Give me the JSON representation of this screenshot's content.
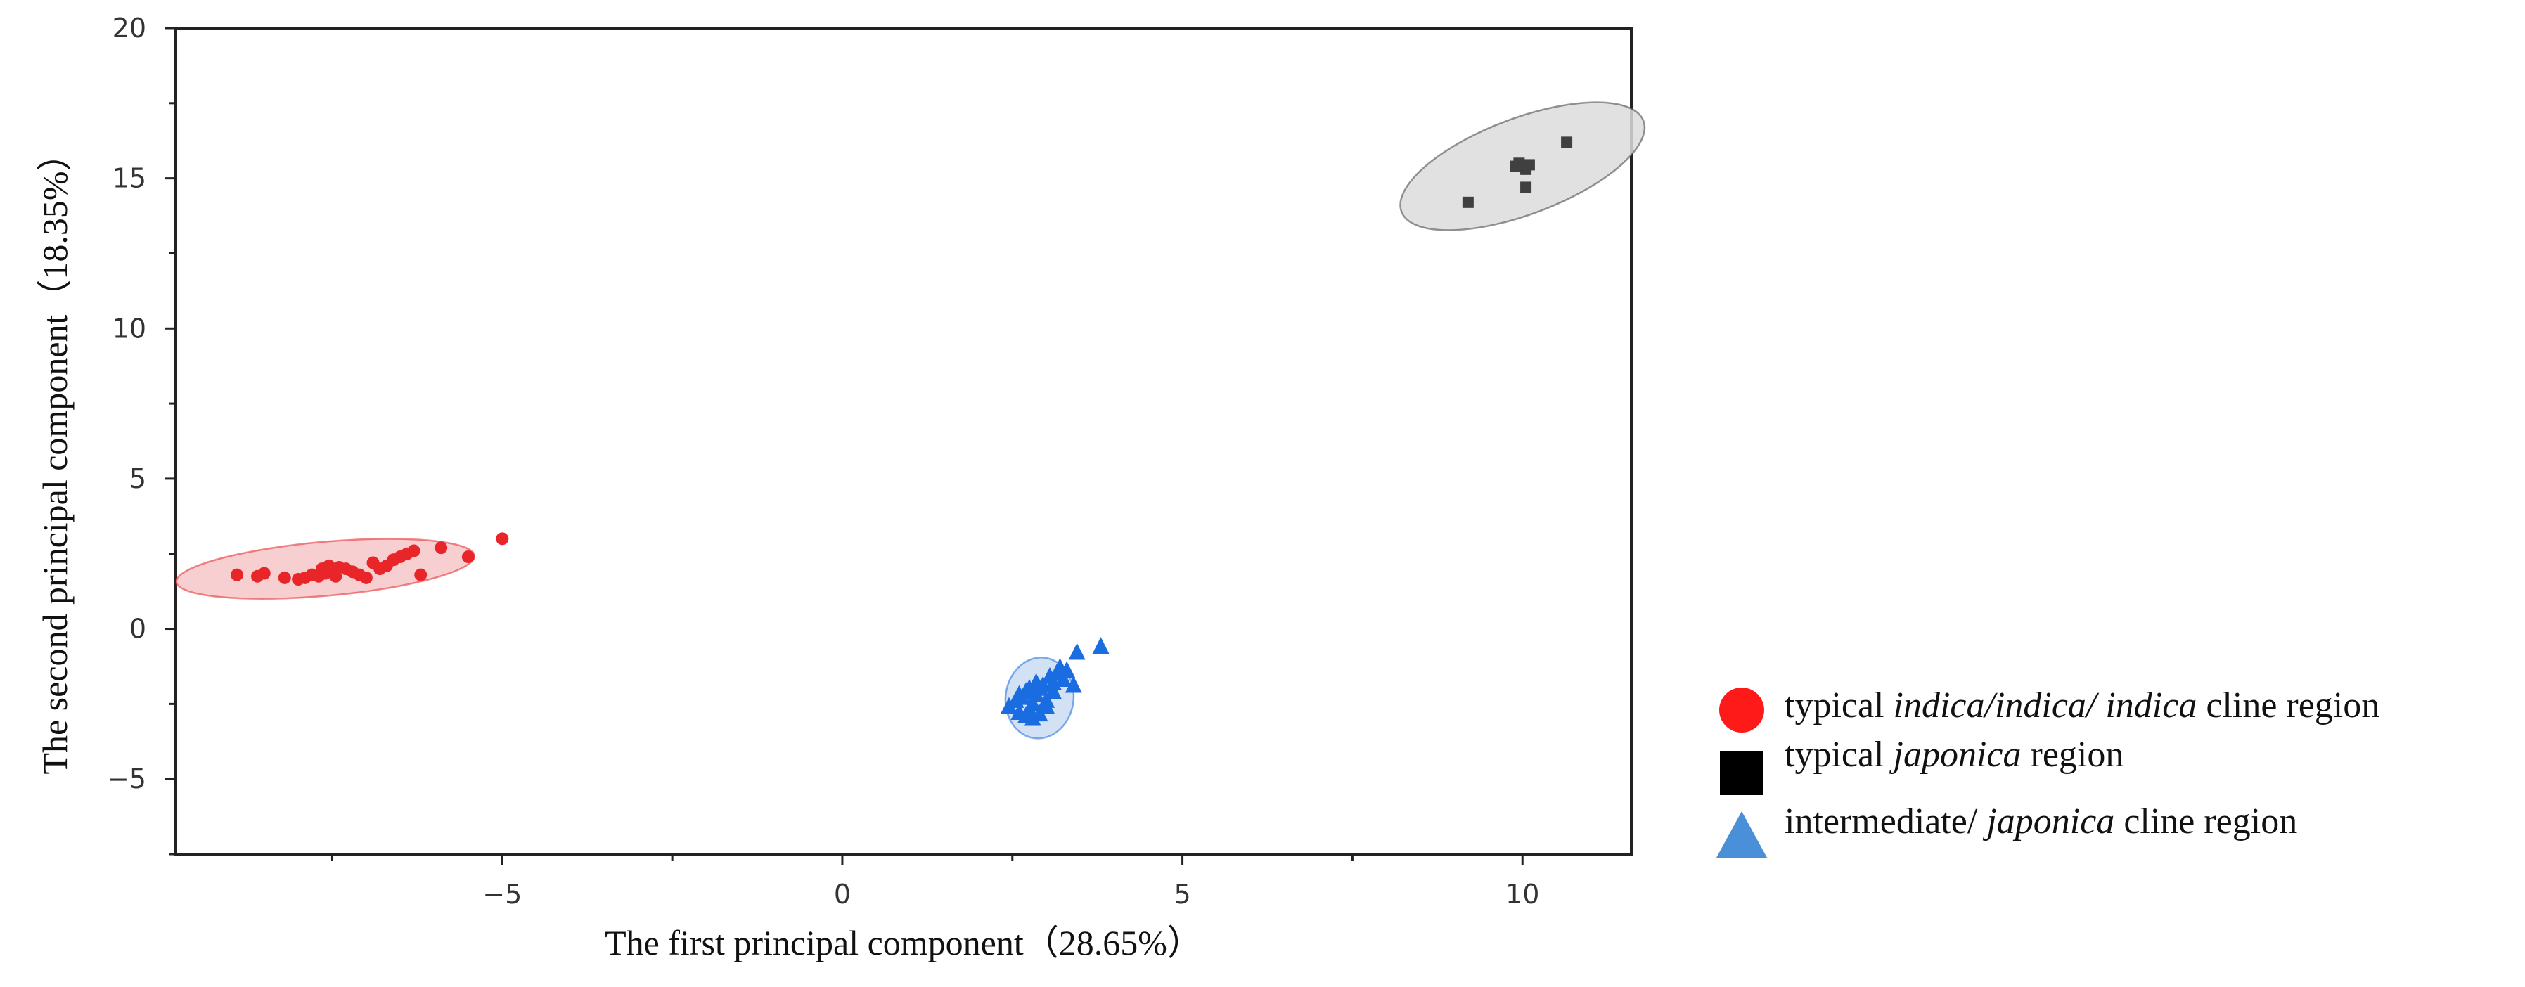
{
  "chart_data": {
    "type": "scatter",
    "title": "",
    "xlabel": "The first principal component（28.65%）",
    "ylabel": "The second principal component（18.35%）",
    "xlim": [
      -9.8,
      11.6
    ],
    "ylim": [
      -7.5,
      20
    ],
    "x_ticks": [
      -5,
      0,
      5,
      10
    ],
    "x_tick_labels": [
      "−5",
      "0",
      "5",
      "10"
    ],
    "y_ticks": [
      -5,
      0,
      5,
      10,
      15,
      20
    ],
    "y_tick_labels": [
      "−5",
      "0",
      "5",
      "10",
      "15",
      "20"
    ],
    "grid": false,
    "legend_position": "right",
    "series": [
      {
        "name": "typical indica/indica/ indica cline region",
        "legend_parts": [
          {
            "text": "typical ",
            "italic": false
          },
          {
            "text": "indica/indica/ indica",
            "italic": true
          },
          {
            "text": " cline region",
            "italic": false
          }
        ],
        "marker": "circle",
        "color": "#e8262a",
        "fill": "#f6c7c8",
        "ellipse": {
          "cx": -7.6,
          "cy": 2.0,
          "rx": 2.2,
          "ry": 0.9,
          "tilt": 0.2
        },
        "x": [
          -8.9,
          -8.6,
          -8.5,
          -8.2,
          -8.0,
          -7.9,
          -7.8,
          -7.7,
          -7.65,
          -7.6,
          -7.55,
          -7.5,
          -7.45,
          -7.4,
          -7.3,
          -7.2,
          -7.1,
          -7.0,
          -6.9,
          -6.8,
          -6.7,
          -6.6,
          -6.5,
          -6.4,
          -6.3,
          -6.2,
          -5.9,
          -5.5,
          -5.0
        ],
        "y": [
          1.8,
          1.75,
          1.85,
          1.7,
          1.65,
          1.7,
          1.8,
          1.75,
          2.0,
          1.85,
          2.1,
          1.9,
          1.75,
          2.05,
          2.0,
          1.9,
          1.8,
          1.7,
          2.2,
          2.0,
          2.1,
          2.3,
          2.4,
          2.5,
          2.6,
          1.8,
          2.7,
          2.4,
          3.0
        ]
      },
      {
        "name": "typical japonica region",
        "legend_parts": [
          {
            "text": "typical ",
            "italic": false
          },
          {
            "text": "japonica",
            "italic": true
          },
          {
            "text": " region",
            "italic": false
          }
        ],
        "marker": "square",
        "color": "#404040",
        "fill": "#dcdcdc",
        "ellipse": {
          "cx": 10.0,
          "cy": 15.4,
          "rx": 1.9,
          "ry": 1.6,
          "tilt": 0.85
        },
        "x": [
          9.2,
          9.9,
          9.95,
          10.05,
          10.1,
          10.05,
          10.65
        ],
        "y": [
          14.2,
          15.4,
          15.5,
          15.3,
          15.45,
          14.7,
          16.2
        ]
      },
      {
        "name": "intermediate/ japonica cline region",
        "legend_parts": [
          {
            "text": "intermediate/ ",
            "italic": false
          },
          {
            "text": "japonica",
            "italic": true
          },
          {
            "text": " cline region",
            "italic": false
          }
        ],
        "marker": "triangle",
        "color": "#1a6de0",
        "fill": "#cbdcf3",
        "ellipse": {
          "cx": 2.9,
          "cy": -2.3,
          "rx": 0.5,
          "ry": 1.35,
          "tilt": -0.3
        },
        "x": [
          2.45,
          2.55,
          2.6,
          2.65,
          2.7,
          2.75,
          2.8,
          2.85,
          2.9,
          2.95,
          3.0,
          3.05,
          3.1,
          3.15,
          3.2,
          3.25,
          3.3,
          2.7,
          2.8,
          2.9,
          3.0,
          2.6,
          2.75,
          2.85,
          3.1,
          3.4,
          3.45,
          3.8
        ],
        "y": [
          -2.6,
          -2.4,
          -2.8,
          -2.3,
          -2.1,
          -2.7,
          -2.5,
          -2.2,
          -2.0,
          -1.9,
          -2.4,
          -1.6,
          -1.8,
          -1.5,
          -1.3,
          -1.7,
          -1.4,
          -2.9,
          -3.0,
          -2.85,
          -2.6,
          -2.2,
          -2.0,
          -1.8,
          -2.1,
          -1.9,
          -0.8,
          -0.6
        ]
      }
    ]
  }
}
